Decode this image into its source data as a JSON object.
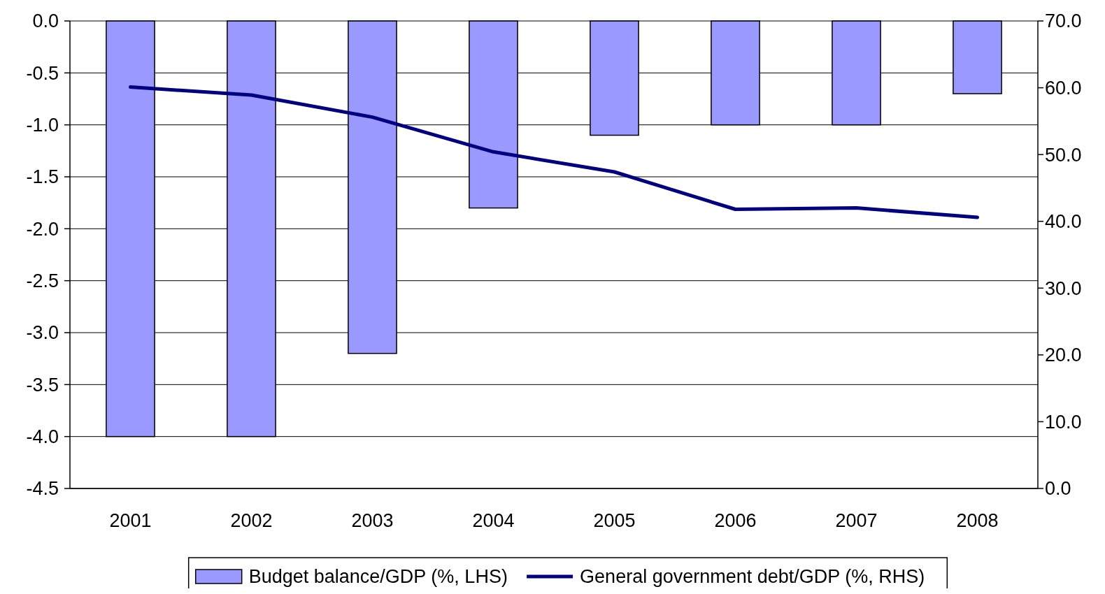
{
  "chart_data": {
    "type": "bar",
    "categories": [
      "2001",
      "2002",
      "2003",
      "2004",
      "2005",
      "2006",
      "2007",
      "2008"
    ],
    "series": [
      {
        "name": "Budget balance/GDP (%, LHS)",
        "color": "#9999ff",
        "values": [
          -4.0,
          -4.0,
          -3.2,
          -1.8,
          -1.1,
          -1.0,
          -1.0,
          -0.7
        ]
      },
      {
        "name": "General government debt/GDP (%, RHS)",
        "type": "line",
        "axis": "y2",
        "color": "#000080",
        "values": [
          60.1,
          58.9,
          55.6,
          50.4,
          47.4,
          41.8,
          42.0,
          40.6
        ]
      }
    ],
    "ylim": [
      -4.5,
      0
    ],
    "yticks": [
      {
        "value": 0,
        "label": "0.0"
      },
      {
        "value": -0.5,
        "label": "-0.5"
      },
      {
        "value": -1,
        "label": "-1.0"
      },
      {
        "value": -1.5,
        "label": "-1.5"
      },
      {
        "value": -2,
        "label": "-2.0"
      },
      {
        "value": -2.5,
        "label": "-2.5"
      },
      {
        "value": -3,
        "label": "-3.0"
      },
      {
        "value": -3.5,
        "label": "-3.5"
      },
      {
        "value": -4,
        "label": "-4.0"
      },
      {
        "value": -4.5,
        "label": "-4.5"
      }
    ],
    "y2lim": [
      0,
      70
    ],
    "y2ticks": [
      {
        "value": 0,
        "label": "0.0"
      },
      {
        "value": 10,
        "label": "10.0"
      },
      {
        "value": 20,
        "label": "20.0"
      },
      {
        "value": 30,
        "label": "30.0"
      },
      {
        "value": 40,
        "label": "40.0"
      },
      {
        "value": 50,
        "label": "50.0"
      },
      {
        "value": 60,
        "label": "60.0"
      },
      {
        "value": 70,
        "label": "70.0"
      }
    ],
    "grid": "y",
    "legend": "bottom",
    "marker": "none",
    "line_style": "solid"
  }
}
